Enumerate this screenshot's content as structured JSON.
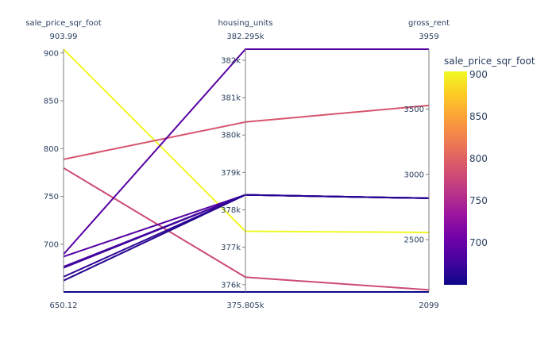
{
  "chart_data": {
    "type": "parallel_coordinates",
    "color_dimension": "sale_price_sqr_foot",
    "colorscale": [
      "#0d0887",
      "#46039f",
      "#7201a8",
      "#9c179e",
      "#bd3786",
      "#d8576b",
      "#ed7953",
      "#fb9f3a",
      "#fdca26",
      "#f0f921"
    ],
    "dimensions": [
      {
        "label": "sale_price_sqr_foot",
        "range": [
          650.12,
          903.99
        ],
        "range_labels": [
          "650.12",
          "903.99"
        ],
        "ticks": [
          700,
          750,
          800,
          850,
          900
        ],
        "tick_labels": [
          "700",
          "750",
          "800",
          "850",
          "900"
        ]
      },
      {
        "label": "housing_units",
        "range": [
          375805,
          382295
        ],
        "range_labels": [
          "375.805k",
          "382.295k"
        ],
        "ticks": [
          376000,
          377000,
          378000,
          379000,
          380000,
          381000,
          382000
        ],
        "tick_labels": [
          "376k",
          "377k",
          "378k",
          "379k",
          "380k",
          "381k",
          "382k"
        ]
      },
      {
        "label": "gross_rent",
        "range": [
          2099,
          3959
        ],
        "range_labels": [
          "2099",
          "3959"
        ],
        "ticks": [
          2500,
          3000,
          3500
        ],
        "tick_labels": [
          "2500",
          "3000",
          "3500"
        ]
      }
    ],
    "lines": [
      {
        "sale_price_sqr_foot": 903.99,
        "housing_units": 377427,
        "gross_rent": 2555
      },
      {
        "sale_price_sqr_foot": 788.85,
        "housing_units": 380348,
        "gross_rent": 3528
      },
      {
        "sale_price_sqr_foot": 779.81,
        "housing_units": 376200,
        "gross_rent": 2115
      },
      {
        "sale_price_sqr_foot": 689.56,
        "housing_units": 382295,
        "gross_rent": 3959
      },
      {
        "sale_price_sqr_foot": 687.09,
        "housing_units": 378401,
        "gross_rent": 2817
      },
      {
        "sale_price_sqr_foot": 676.51,
        "housing_units": 378401,
        "gross_rent": 2817
      },
      {
        "sale_price_sqr_foot": 675.35,
        "housing_units": 378401,
        "gross_rent": 2817
      },
      {
        "sale_price_sqr_foot": 665.96,
        "housing_units": 378401,
        "gross_rent": 2817
      },
      {
        "sale_price_sqr_foot": 662.01,
        "housing_units": 378401,
        "gross_rent": 2817
      },
      {
        "sale_price_sqr_foot": 650.12,
        "housing_units": 375805,
        "gross_rent": 2099
      }
    ],
    "colorbar": {
      "title": "sale_price_sqr_foot",
      "range": [
        650.12,
        903.99
      ],
      "ticks": [
        700,
        750,
        800,
        850,
        900
      ],
      "tick_labels": [
        "700",
        "750",
        "800",
        "850",
        "900"
      ]
    }
  }
}
